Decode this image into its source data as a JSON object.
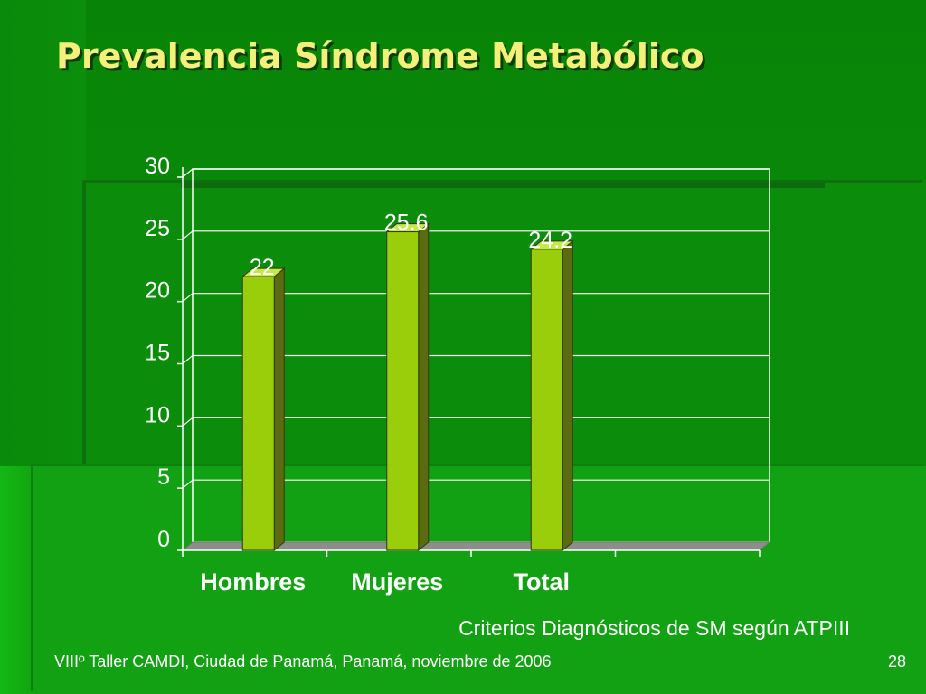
{
  "slide": {
    "title": "Prevalencia Síndrome Metabólico",
    "subtitle": "Criterios Diagnósticos de SM según ATPIII",
    "footer_left": "VIIIº Taller CAMDI, Ciudad de Panamá, Panamá, noviembre de 2006",
    "page_number": "28"
  },
  "colors": {
    "background": "#0a8a0a",
    "title": "#f5f07a",
    "bar_front": "#9acd0a",
    "bar_side": "#5a6b10",
    "text": "#ffffff"
  },
  "chart_data": {
    "type": "bar",
    "categories": [
      "Hombres",
      "Mujeres",
      "Total"
    ],
    "values": [
      22,
      25.6,
      24.2
    ],
    "data_labels": [
      "22",
      "25.6",
      "24.2"
    ],
    "y_ticks": [
      "0",
      "5",
      "10",
      "15",
      "20",
      "25",
      "30"
    ],
    "ylim": [
      0,
      30
    ],
    "grid": true,
    "style": "3d-column",
    "legend": "none"
  }
}
